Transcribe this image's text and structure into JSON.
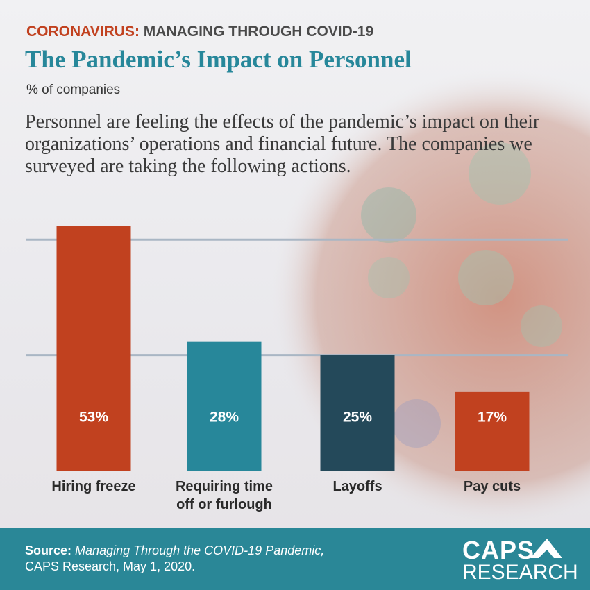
{
  "header": {
    "kicker": "CORONAVIRUS:",
    "kicker_rest": "MANAGING THROUGH COVID-19",
    "title": "The Pandemic’s Impact on Personnel",
    "subtitle": "% of companies",
    "description": "Personnel are feeling the effects of the pandemic’s impact on their organizations’ operations and financial future. The companies we surveyed are taking the following actions."
  },
  "chart_data": {
    "type": "bar",
    "categories": [
      "Hiring freeze",
      "Requiring time off or furlough",
      "Layoffs",
      "Pay cuts"
    ],
    "values": [
      53,
      28,
      25,
      17
    ],
    "value_labels": [
      "53%",
      "28%",
      "25%",
      "17%"
    ],
    "colors": [
      "#c1411f",
      "#27879a",
      "#24495a",
      "#c1411f"
    ],
    "ylim": [
      0,
      55
    ],
    "yticks": [
      25,
      50
    ],
    "grid": true
  },
  "footer": {
    "source_label": "Source:",
    "source_title": "Managing Through the COVID-19 Pandemic,",
    "source_rest": "CAPS Research, May 1, 2020.",
    "logo_top": "CAPS",
    "logo_bottom": "RESEARCH"
  }
}
